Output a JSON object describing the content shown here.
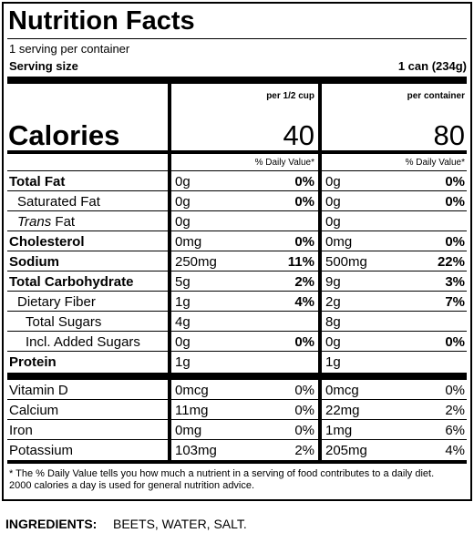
{
  "title": "Nutrition Facts",
  "servings": "1 serving per container",
  "serving_size": {
    "label": "Serving size",
    "value": "1 can (234g)"
  },
  "columns": [
    "per 1/2 cup",
    "per container"
  ],
  "calories": {
    "label": "Calories",
    "values": [
      "40",
      "80"
    ]
  },
  "dv_header": [
    "% Daily Value*",
    "% Daily Value*"
  ],
  "nutrients": [
    {
      "name": "Total Fat",
      "values": [
        {
          "amount": "0g",
          "dv": "0%"
        },
        {
          "amount": "0g",
          "dv": "0%"
        }
      ]
    },
    {
      "name": "Saturated Fat",
      "values": [
        {
          "amount": "0g",
          "dv": "0%"
        },
        {
          "amount": "0g",
          "dv": "0%"
        }
      ]
    },
    {
      "name": "Trans Fat",
      "values": [
        {
          "amount": "0g"
        },
        {
          "amount": "0g"
        }
      ]
    },
    {
      "name": "Cholesterol",
      "values": [
        {
          "amount": "0mg",
          "dv": "0%"
        },
        {
          "amount": "0mg",
          "dv": "0%"
        }
      ]
    },
    {
      "name": "Sodium",
      "values": [
        {
          "amount": "250mg",
          "dv": "11%"
        },
        {
          "amount": "500mg",
          "dv": "22%"
        }
      ]
    },
    {
      "name": "Total Carbohydrate",
      "values": [
        {
          "amount": "5g",
          "dv": "2%"
        },
        {
          "amount": "9g",
          "dv": "3%"
        }
      ]
    },
    {
      "name": "Dietary Fiber",
      "values": [
        {
          "amount": "1g",
          "dv": "4%"
        },
        {
          "amount": "2g",
          "dv": "7%"
        }
      ]
    },
    {
      "name": "Total Sugars",
      "values": [
        {
          "amount": "4g"
        },
        {
          "amount": "8g"
        }
      ]
    },
    {
      "name": "Incl. Added Sugars",
      "values": [
        {
          "amount": "0g",
          "dv": "0%"
        },
        {
          "amount": "0g",
          "dv": "0%"
        }
      ]
    },
    {
      "name": "Protein",
      "values": [
        {
          "amount": "1g"
        },
        {
          "amount": "1g"
        }
      ]
    }
  ],
  "vitamins": [
    {
      "name": "Vitamin D",
      "values": [
        {
          "amount": "0mcg",
          "dv": "0%"
        },
        {
          "amount": "0mcg",
          "dv": "0%"
        }
      ]
    },
    {
      "name": "Calcium",
      "values": [
        {
          "amount": "11mg",
          "dv": "0%"
        },
        {
          "amount": "22mg",
          "dv": "2%"
        }
      ]
    },
    {
      "name": "Iron",
      "values": [
        {
          "amount": "0mg",
          "dv": "0%"
        },
        {
          "amount": "1mg",
          "dv": "6%"
        }
      ]
    },
    {
      "name": "Potassium",
      "values": [
        {
          "amount": "103mg",
          "dv": "2%"
        },
        {
          "amount": "205mg",
          "dv": "4%"
        }
      ]
    }
  ],
  "footnote": "* The % Daily Value tells you how much a nutrient in a serving of food contributes to a daily diet. 2000 calories a day is used for general nutrition advice.",
  "ingredients": {
    "label": "INGREDIENTS:",
    "text": "BEETS, WATER, SALT."
  }
}
